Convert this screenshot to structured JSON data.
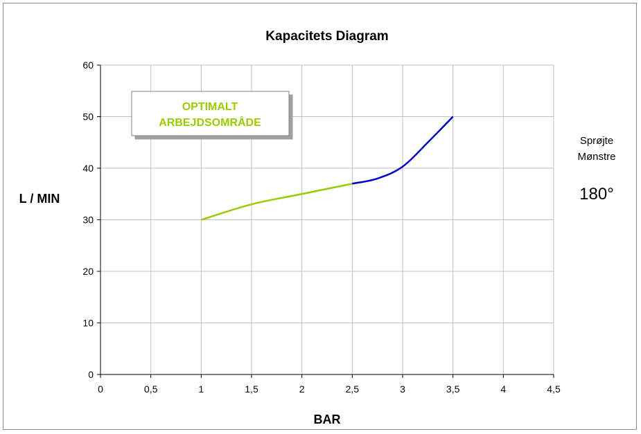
{
  "chart_data": {
    "type": "line",
    "title": "Kapacitets Diagram",
    "xlabel": "BAR",
    "ylabel": "L / MIN",
    "xlim": [
      0,
      4.5
    ],
    "ylim": [
      0,
      60
    ],
    "x_ticks": [
      "0",
      "0,5",
      "1",
      "1,5",
      "2",
      "2,5",
      "3",
      "3,5",
      "4",
      "4,5"
    ],
    "y_ticks": [
      "0",
      "10",
      "20",
      "30",
      "40",
      "50",
      "60"
    ],
    "x_tick_values": [
      0,
      0.5,
      1,
      1.5,
      2,
      2.5,
      3,
      3.5,
      4,
      4.5
    ],
    "y_tick_values": [
      0,
      10,
      20,
      30,
      40,
      50,
      60
    ],
    "grid": true,
    "series": [
      {
        "color": "#99cc00",
        "x": [
          1.0,
          1.5,
          2.0,
          2.5
        ],
        "y": [
          30.0,
          33.0,
          35.0,
          37.0
        ]
      },
      {
        "color": "#0000cc",
        "x": [
          2.5,
          2.75,
          3.0,
          3.25,
          3.5
        ],
        "y": [
          37.0,
          38.0,
          40.3,
          45.0,
          50.0
        ]
      }
    ],
    "annotation": {
      "lines": [
        "OPTIMALT",
        "ARBEJDSOMRÅDE"
      ],
      "color": "#99cc00"
    }
  },
  "side_info": {
    "label_line1": "Sprøjte",
    "label_line2": "Mønstre",
    "value": "180°"
  }
}
